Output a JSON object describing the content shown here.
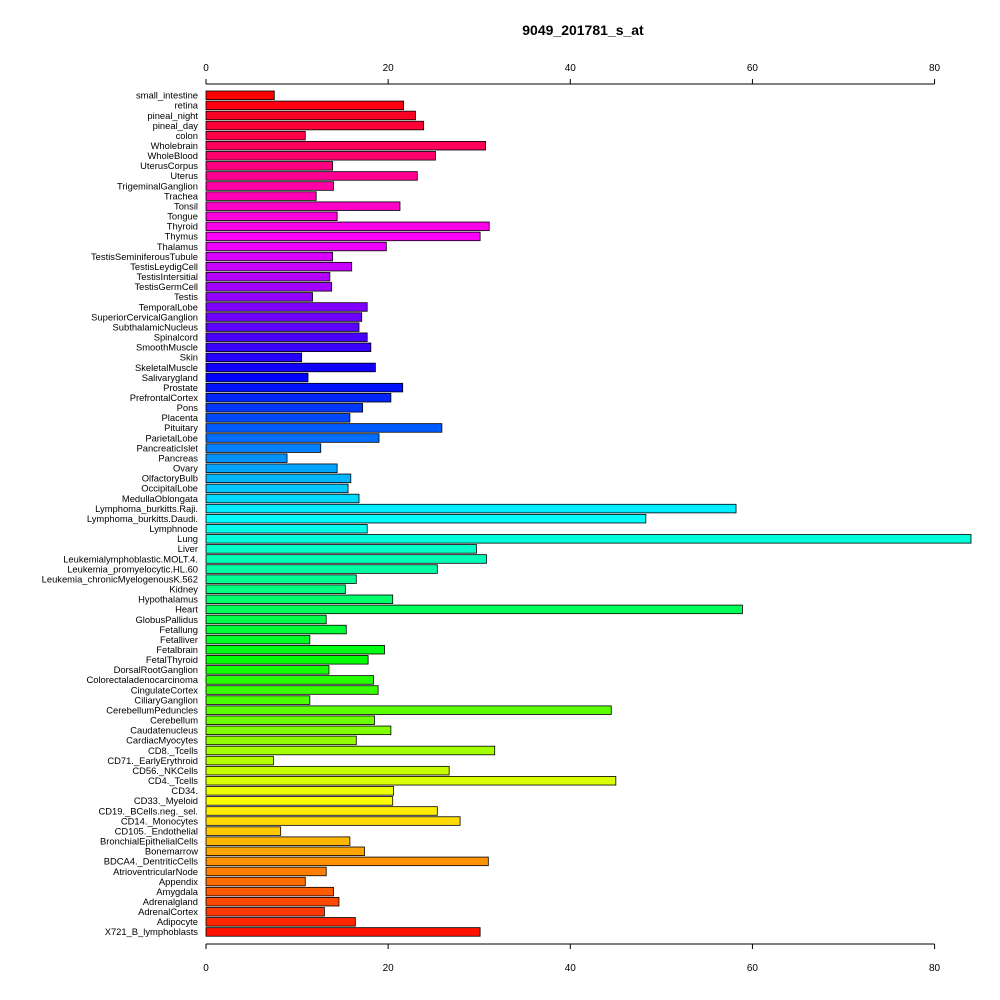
{
  "chart_data": {
    "type": "bar",
    "orientation": "horizontal",
    "title": "9049_201781_s_at",
    "xlabel": "",
    "ylabel": "",
    "xlim": [
      0,
      84
    ],
    "ticks": [
      0,
      20,
      40,
      60,
      80
    ],
    "tick_labels": [
      "0",
      "20",
      "40",
      "60",
      "80"
    ],
    "grid": false,
    "legend": "none",
    "colors": "rainbow gradient from red (top) through magenta, blue, cyan, green, yellow, orange back to red (bottom)",
    "categories": [
      "small_intestine",
      "retina",
      "pineal_night",
      "pineal_day",
      "colon",
      "Wholebrain",
      "WholeBlood",
      "UterusCorpus",
      "Uterus",
      "TrigeminalGanglion",
      "Trachea",
      "Tonsil",
      "Tongue",
      "Thyroid",
      "Thymus",
      "Thalamus",
      "TestisSeminiferousTubule",
      "TestisLeydigCell",
      "TestisIntersitial",
      "TestisGermCell",
      "Testis",
      "TemporalLobe",
      "SuperiorCervicalGanglion",
      "SubthalamicNucleus",
      "Spinalcord",
      "SmoothMuscle",
      "Skin",
      "SkeletalMuscle",
      "Salivarygland",
      "Prostate",
      "PrefrontalCortex",
      "Pons",
      "Placenta",
      "Pituitary",
      "ParietalLobe",
      "PancreaticIslet",
      "Pancreas",
      "Ovary",
      "OlfactoryBulb",
      "OccipitalLobe",
      "MedullaOblongata",
      "Lymphoma_burkitts.Raji.",
      "Lymphoma_burkitts.Daudi.",
      "Lymphnode",
      "Lung",
      "Liver",
      "Leukemialymphoblastic.MOLT.4.",
      "Leukemia_promyelocytic.HL.60",
      "Leukemia_chronicMyelogenousK.562",
      "Kidney",
      "Hypothalamus",
      "Heart",
      "GlobusPallidus",
      "Fetallung",
      "Fetalliver",
      "Fetalbrain",
      "FetalThyroid",
      "DorsalRootGanglion",
      "Colorectaladenocarcinoma",
      "CingulateCortex",
      "CiliaryGanglion",
      "CerebellumPeduncles",
      "Cerebellum",
      "Caudatenucleus",
      "CardiacMyocytes",
      "CD8._Tcells",
      "CD71._EarlyErythroid",
      "CD56._NKCells",
      "CD4._Tcells",
      "CD34.",
      "CD33._Myeloid",
      "CD19._BCells.neg._sel.",
      "CD14._Monocytes",
      "CD105._Endothelial",
      "BronchialEpithelialCells",
      "Bonemarrow",
      "BDCA4._DentriticCells",
      "AtrioventricularNode",
      "Appendix",
      "Amygdala",
      "Adrenalgland",
      "AdrenalCortex",
      "Adipocyte",
      "X721_B_lymphoblasts"
    ],
    "values": [
      7.5,
      21.7,
      23.0,
      23.9,
      10.9,
      30.7,
      25.2,
      13.9,
      23.2,
      14.0,
      12.1,
      21.3,
      14.4,
      31.1,
      30.1,
      19.8,
      13.9,
      16.0,
      13.6,
      13.8,
      11.7,
      17.7,
      17.1,
      16.8,
      17.7,
      18.1,
      10.5,
      18.6,
      11.2,
      21.6,
      20.3,
      17.2,
      15.8,
      25.9,
      19.0,
      12.6,
      8.9,
      14.4,
      15.9,
      15.6,
      16.8,
      58.2,
      48.3,
      17.7,
      84.0,
      29.7,
      30.8,
      25.4,
      16.5,
      15.3,
      20.5,
      58.9,
      13.2,
      15.4,
      11.4,
      19.6,
      17.8,
      13.5,
      18.4,
      18.9,
      11.4,
      44.5,
      18.5,
      20.3,
      16.5,
      31.7,
      7.4,
      26.7,
      45.0,
      20.6,
      20.5,
      25.4,
      27.9,
      8.2,
      15.8,
      17.4,
      31.0,
      13.2,
      10.9,
      14.0,
      14.6,
      13.0,
      16.4,
      30.1
    ]
  }
}
